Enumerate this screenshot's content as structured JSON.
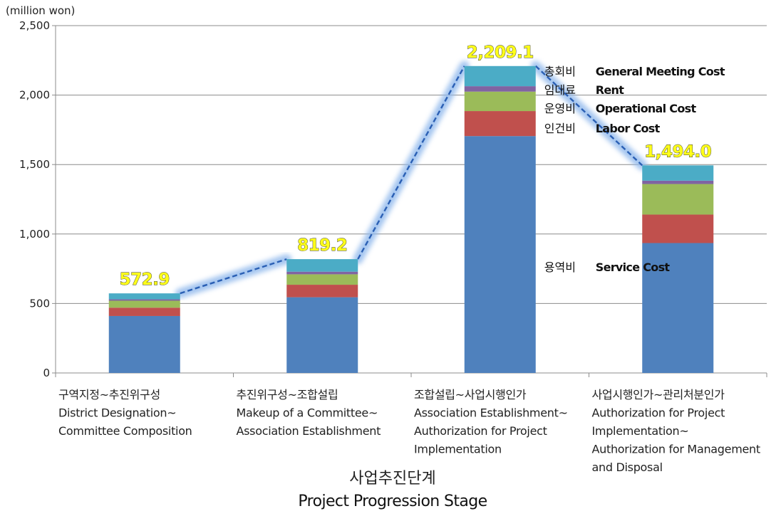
{
  "chart_data": {
    "type": "bar",
    "stacked": true,
    "unit_label": "(million won)",
    "ylim": [
      0,
      2500
    ],
    "yticks": [
      "0",
      "500",
      "1,000",
      "1,500",
      "2,000",
      "2,500"
    ],
    "ytick_values": [
      0,
      500,
      1000,
      1500,
      2000,
      2500
    ],
    "grid": true,
    "xlabel_ko": "사업추진단계",
    "xlabel_en": "Project Progression Stage",
    "categories": [
      [
        "구역지정~추진위구성",
        "District Designation~",
        "Committee Composition"
      ],
      [
        "추진위구성~조합설립",
        "Makeup of a Committee~",
        "Association Establishment"
      ],
      [
        "조합설립~사업시행인가",
        "Association Establishment~",
        "Authorization for Project",
        "Implementation"
      ],
      [
        "사업시행인가~관리처분인가",
        "Authorization for Project",
        "Implementation~",
        "Authorization for Management",
        "and Disposal"
      ]
    ],
    "totals": [
      572.9,
      819.2,
      2209.1,
      1494.0
    ],
    "total_labels": [
      "572.9",
      "819.2",
      "2,209.1",
      "1,494.0"
    ],
    "series": [
      {
        "name_ko": "용역비",
        "name_en": "Service Cost",
        "color": "#4f81bd",
        "values": [
          410,
          545,
          1705,
          935
        ]
      },
      {
        "name_ko": "인건비",
        "name_en": "Labor Cost",
        "color": "#c0504d",
        "values": [
          60,
          90,
          180,
          205
        ]
      },
      {
        "name_ko": "운영비",
        "name_en": "Operational Cost",
        "color": "#9bbb59",
        "values": [
          50,
          75,
          140,
          220
        ]
      },
      {
        "name_ko": "임대료",
        "name_en": "Rent",
        "color": "#8064a2",
        "values": [
          10,
          19,
          39,
          24
        ]
      },
      {
        "name_ko": "총회비",
        "name_en": "General Meeting Cost",
        "color": "#4bacc6",
        "values": [
          42.9,
          90.2,
          145.1,
          110
        ]
      }
    ],
    "legend_placement": "inline-right-of-third-bar"
  }
}
